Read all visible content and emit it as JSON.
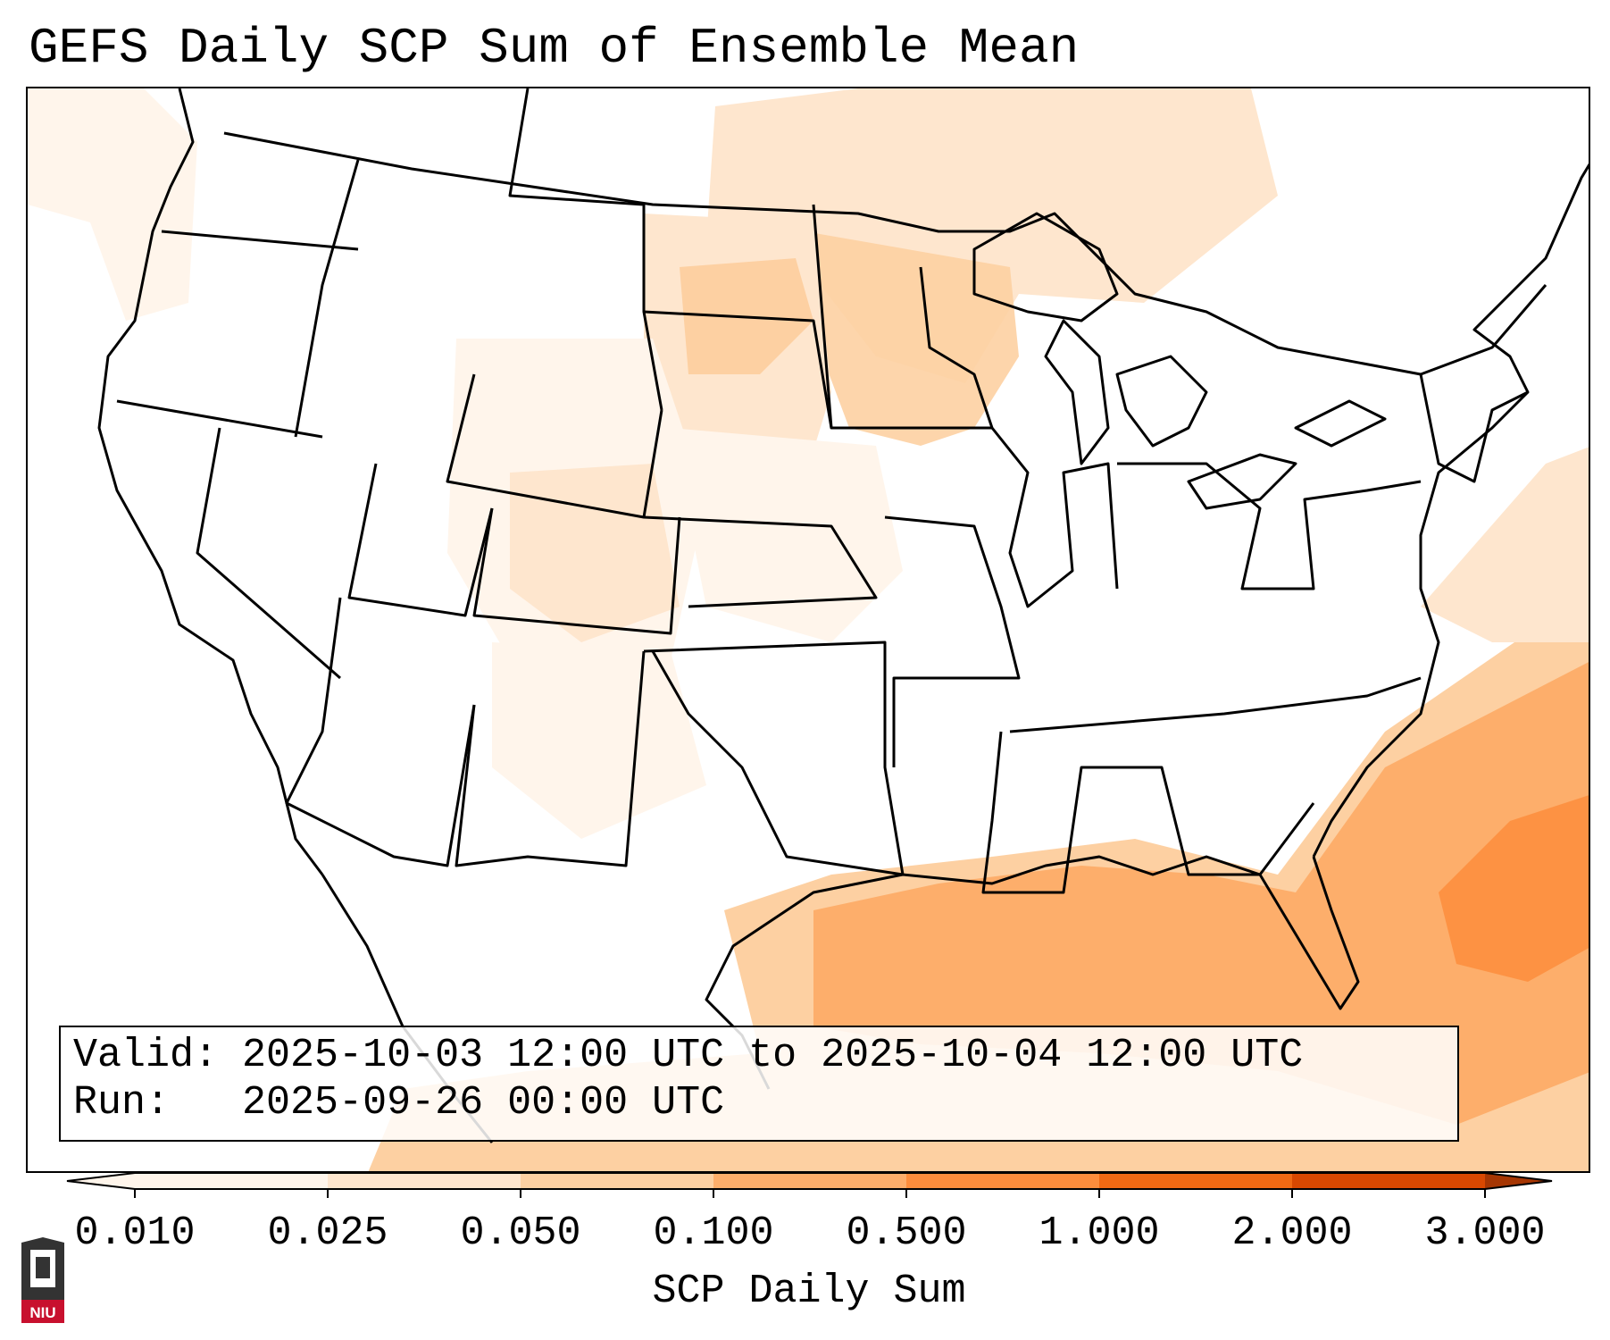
{
  "title": "GEFS Daily SCP Sum of Ensemble Mean",
  "info": {
    "valid_label": "Valid:",
    "valid_value": "2025-10-03 12:00 UTC to 2025-10-04 12:00 UTC",
    "run_label": "Run:",
    "run_value": "2025-09-26 00:00 UTC"
  },
  "colorbar": {
    "label": "SCP Daily Sum",
    "ticks": [
      "0.010",
      "0.025",
      "0.050",
      "0.100",
      "0.500",
      "1.000",
      "2.000",
      "3.000"
    ],
    "colors": [
      "#fff5eb",
      "#fee6ce",
      "#fdd0a2",
      "#fdae6b",
      "#fd8d3c",
      "#f16913",
      "#d94801",
      "#a63603"
    ],
    "extend": "both"
  },
  "logo_text": "NIU",
  "colors": {
    "border": "#000000",
    "background": "#ffffff",
    "logo_red": "#c8102e"
  }
}
